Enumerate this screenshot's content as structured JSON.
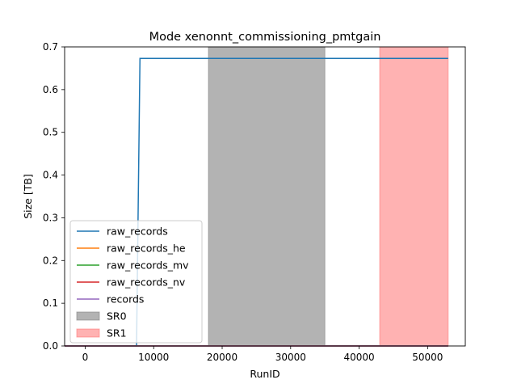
{
  "chart_data": {
    "type": "line",
    "title": "Mode xenonnt_commissioning_pmtgain",
    "xlabel": "RunID",
    "ylabel": "Size [TB]",
    "xlim": [
      -3000,
      55500
    ],
    "ylim": [
      0,
      0.7
    ],
    "xticks": [
      0,
      10000,
      20000,
      30000,
      40000,
      50000
    ],
    "yticks": [
      0.0,
      0.1,
      0.2,
      0.3,
      0.4,
      0.5,
      0.6,
      0.7
    ],
    "xtick_labels": [
      "0",
      "10000",
      "20000",
      "30000",
      "40000",
      "50000"
    ],
    "ytick_labels": [
      "0.0",
      "0.1",
      "0.2",
      "0.3",
      "0.4",
      "0.5",
      "0.6",
      "0.7"
    ],
    "grid": false,
    "legend_position": "lower-left",
    "series": [
      {
        "name": "raw_records",
        "color": "#1f77b4",
        "x": [
          -3000,
          7500,
          7500,
          8000,
          53000
        ],
        "y": [
          0,
          0,
          0,
          0.673,
          0.673
        ]
      },
      {
        "name": "raw_records_he",
        "color": "#ff7f0e",
        "x": [
          -3000,
          53000
        ],
        "y": [
          0,
          0
        ]
      },
      {
        "name": "raw_records_mv",
        "color": "#2ca02c",
        "x": [
          -3000,
          53000
        ],
        "y": [
          0,
          0
        ]
      },
      {
        "name": "raw_records_nv",
        "color": "#d62728",
        "x": [
          -3000,
          53000
        ],
        "y": [
          0,
          0
        ]
      },
      {
        "name": "records",
        "color": "#9467bd",
        "x": [
          -3000,
          53000
        ],
        "y": [
          0,
          0
        ]
      }
    ],
    "spans": [
      {
        "name": "SR0",
        "x_start": 18000,
        "x_end": 35000,
        "color": "#808080",
        "opacity": 0.6
      },
      {
        "name": "SR1",
        "x_start": 43000,
        "x_end": 53000,
        "color": "#ff6666",
        "opacity": 0.5
      }
    ]
  }
}
